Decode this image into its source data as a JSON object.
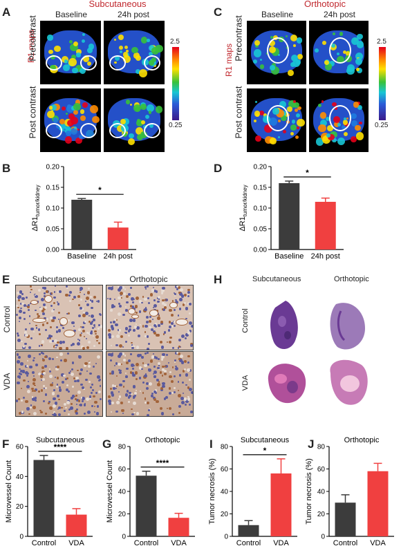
{
  "panel_letters": {
    "A": "A",
    "B": "B",
    "C": "C",
    "D": "D",
    "E": "E",
    "F": "F",
    "G": "G",
    "H": "H",
    "I": "I",
    "J": "J"
  },
  "panelA": {
    "title": "Subcutaneous",
    "col1": "Baseline",
    "col2": "24h post",
    "row1": "Precontrast",
    "row2": "Post contrast",
    "side": "R1 maps",
    "cb_max": "2.5",
    "cb_min": "0.25"
  },
  "panelC": {
    "title": "Orthotopic",
    "col1": "Baseline",
    "col2": "24h post",
    "row1": "Precontrast",
    "row2": "Post contrast",
    "side": "R1 maps",
    "cb_max": "2.5",
    "cb_min": "0.25"
  },
  "panelE": {
    "col1": "Subcutaneous",
    "col2": "Orthotopic",
    "row1": "Control",
    "row2": "VDA"
  },
  "panelH": {
    "col1": "Subcutaneous",
    "col2": "Orthotopic",
    "row1": "Control",
    "row2": "VDA"
  },
  "chart_data": [
    {
      "id": "B",
      "type": "bar",
      "title": "",
      "ylabel": "ΔR1tumor/kidney",
      "categories": [
        "Baseline",
        "24h post"
      ],
      "values": [
        0.12,
        0.053
      ],
      "errors": [
        0.003,
        0.013
      ],
      "ylim": [
        0,
        0.2
      ],
      "yticks": [
        "0.00",
        "0.05",
        "0.10",
        "0.15",
        "0.20"
      ],
      "significance": "*",
      "colors": [
        "#3c3c3c",
        "#f04040"
      ]
    },
    {
      "id": "D",
      "type": "bar",
      "title": "",
      "ylabel": "ΔR1tumor/kidney",
      "categories": [
        "Baseline",
        "24h post"
      ],
      "values": [
        0.16,
        0.115
      ],
      "errors": [
        0.005,
        0.009
      ],
      "ylim": [
        0,
        0.2
      ],
      "yticks": [
        "0.00",
        "0.05",
        "0.10",
        "0.15",
        "0.20"
      ],
      "significance": "*",
      "colors": [
        "#3c3c3c",
        "#f04040"
      ]
    },
    {
      "id": "F",
      "type": "bar",
      "title": "Subcutaneous",
      "ylabel": "Microvessel Count",
      "categories": [
        "Control",
        "VDA"
      ],
      "values": [
        51,
        14.5
      ],
      "errors": [
        3,
        4
      ],
      "ylim": [
        0,
        60
      ],
      "yticks": [
        "0",
        "20",
        "40",
        "60"
      ],
      "significance": "****",
      "colors": [
        "#3c3c3c",
        "#f04040"
      ]
    },
    {
      "id": "G",
      "type": "bar",
      "title": "Orthotopic",
      "ylabel": "Microvessel Count",
      "categories": [
        "Control",
        "VDA"
      ],
      "values": [
        54,
        16.5
      ],
      "errors": [
        4,
        4
      ],
      "ylim": [
        0,
        80
      ],
      "yticks": [
        "0",
        "20",
        "40",
        "60",
        "80"
      ],
      "significance": "****",
      "colors": [
        "#3c3c3c",
        "#f04040"
      ]
    },
    {
      "id": "I",
      "type": "bar",
      "title": "Subcutaneous",
      "ylabel": "Tumor necrosis (%)",
      "categories": [
        "Control",
        "VDA"
      ],
      "values": [
        10,
        56
      ],
      "errors": [
        4,
        13
      ],
      "ylim": [
        0,
        80
      ],
      "yticks": [
        "0",
        "20",
        "40",
        "60",
        "80"
      ],
      "significance": "*",
      "colors": [
        "#3c3c3c",
        "#f04040"
      ]
    },
    {
      "id": "J",
      "type": "bar",
      "title": "Orthotopic",
      "ylabel": "Tumor necrosis (%)",
      "categories": [
        "Control",
        "VDA"
      ],
      "values": [
        30,
        58
      ],
      "errors": [
        7,
        7
      ],
      "ylim": [
        0,
        80
      ],
      "yticks": [
        "0",
        "20",
        "40",
        "60",
        "80"
      ],
      "significance": "",
      "colors": [
        "#3c3c3c",
        "#f04040"
      ]
    }
  ]
}
